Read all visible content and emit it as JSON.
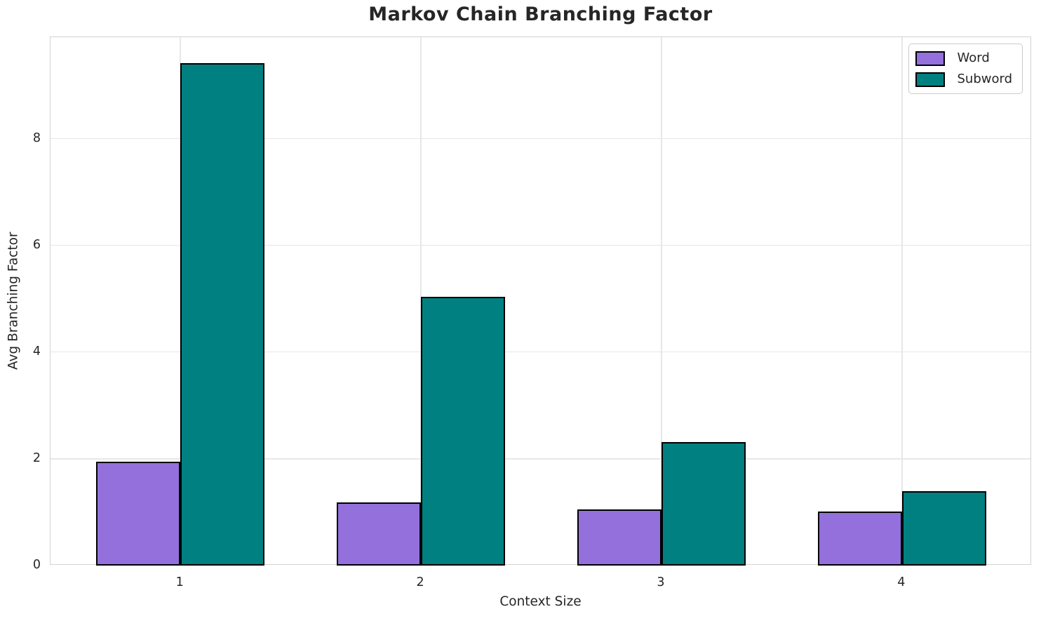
{
  "chart_data": {
    "type": "bar",
    "title": "Markov Chain Branching Factor",
    "xlabel": "Context Size",
    "ylabel": "Avg Branching Factor",
    "categories": [
      "1",
      "2",
      "3",
      "4"
    ],
    "series": [
      {
        "name": "Word",
        "color": "#9370DB",
        "values": [
          1.95,
          1.18,
          1.05,
          1.01
        ]
      },
      {
        "name": "Subword",
        "color": "#008080",
        "values": [
          9.42,
          5.04,
          2.31,
          1.4
        ]
      }
    ],
    "bar_width": 0.35,
    "yticks": [
      0,
      2,
      4,
      6,
      8
    ],
    "ylim": [
      0,
      9.9
    ],
    "xlim": [
      0.46,
      4.54
    ],
    "grid": true,
    "legend_position": "upper right",
    "bar_edge_color": "#000000",
    "grid_color": "#e7e7e7",
    "spine_color": "#d2d2d2",
    "text_color": "#262626"
  }
}
